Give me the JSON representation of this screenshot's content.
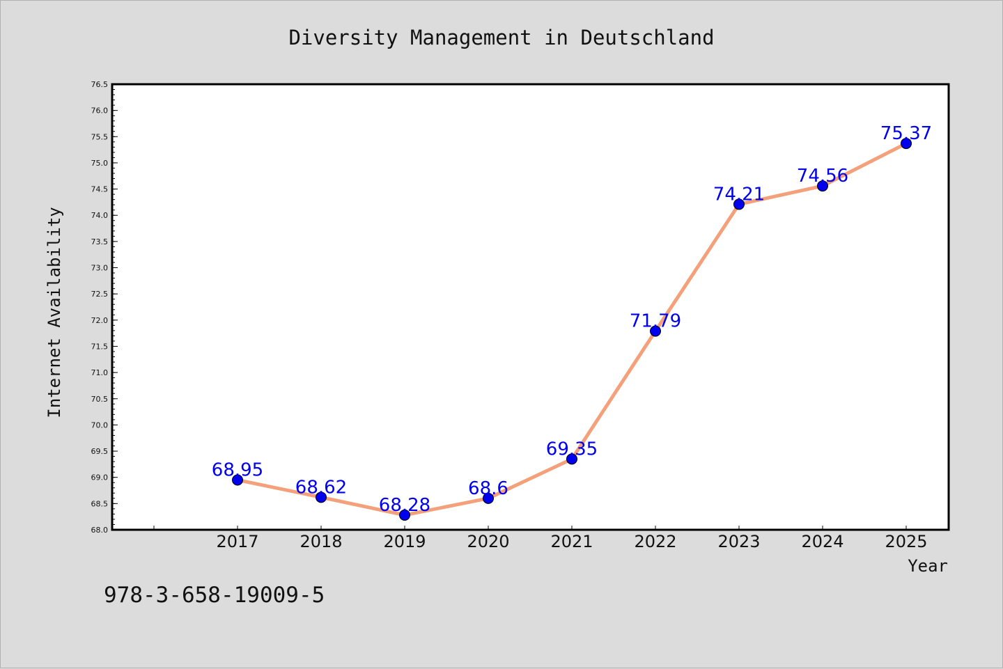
{
  "chart_data": {
    "type": "line",
    "title": "Diversity Management in Deutschland",
    "xlabel": "Year",
    "ylabel": "Internet Availability",
    "categories": [
      "2017",
      "2018",
      "2019",
      "2020",
      "2021",
      "2022",
      "2023",
      "2024",
      "2025"
    ],
    "series": [
      {
        "values": [
          68.95,
          68.62,
          68.28,
          68.6,
          69.35,
          71.79,
          74.21,
          74.56,
          75.37
        ],
        "data_labels": [
          "68.95",
          "68.62",
          "68.28",
          "68.6",
          "69.35",
          "71.79",
          "74.21",
          "74.56",
          "75.37"
        ],
        "line_color": "#f4a07a",
        "marker_color": "#0000ee"
      }
    ],
    "ylim": [
      68.0,
      76.5
    ],
    "yticks": [
      "68.0",
      "68.5",
      "69.0",
      "69.5",
      "70.0",
      "70.5",
      "71.0",
      "71.5",
      "72.0",
      "72.5",
      "73.0",
      "73.5",
      "74.0",
      "74.5",
      "75.0",
      "75.5",
      "76.0",
      "76.5"
    ],
    "grid": false,
    "label_color": "#0000ee"
  },
  "footnote": "978-3-658-19009-5"
}
